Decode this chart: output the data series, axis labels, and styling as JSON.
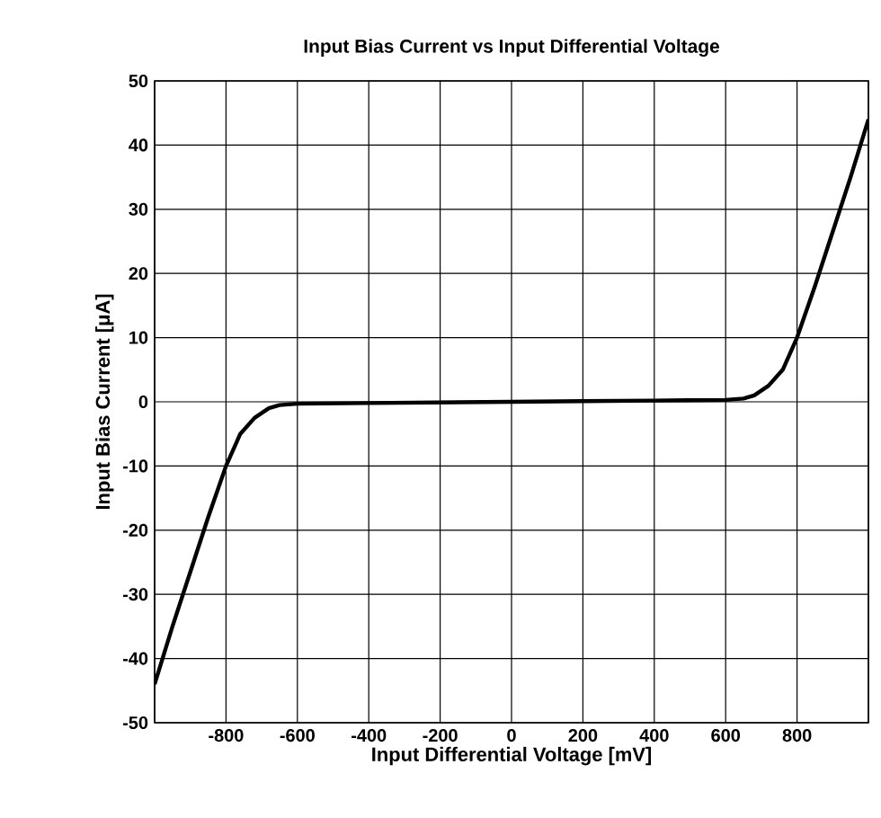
{
  "chart_data": {
    "type": "line",
    "title": "Input Bias Current vs Input Differential Voltage",
    "xlabel": "Input Differential Voltage [mV]",
    "ylabel": "Input Bias Current [μA]",
    "x": [
      -1000,
      -950,
      -900,
      -850,
      -800,
      -760,
      -720,
      -680,
      -650,
      -600,
      -400,
      -200,
      0,
      200,
      400,
      600,
      650,
      680,
      720,
      760,
      800,
      850,
      900,
      950,
      1000
    ],
    "series": [
      {
        "color": "#000000",
        "values": [
          -44,
          -35,
          -26.5,
          -18,
          -10,
          -5,
          -2.5,
          -1,
          -0.5,
          -0.3,
          -0.2,
          -0.1,
          0,
          0.1,
          0.2,
          0.3,
          0.5,
          1,
          2.5,
          5,
          10,
          18,
          26.5,
          35,
          44
        ]
      }
    ],
    "xlim": [
      -1000,
      1000
    ],
    "ylim": [
      -50,
      50
    ],
    "xticks": [
      {
        "value": -1000,
        "label": null
      },
      -800,
      -600,
      -400,
      -200,
      0,
      200,
      400,
      600,
      800,
      {
        "value": 1000,
        "label": null
      }
    ],
    "yticks": [
      -50,
      -40,
      -30,
      -20,
      -10,
      0,
      10,
      20,
      30,
      40,
      50
    ],
    "grid": true,
    "marker": "none",
    "line_style": "solid"
  }
}
